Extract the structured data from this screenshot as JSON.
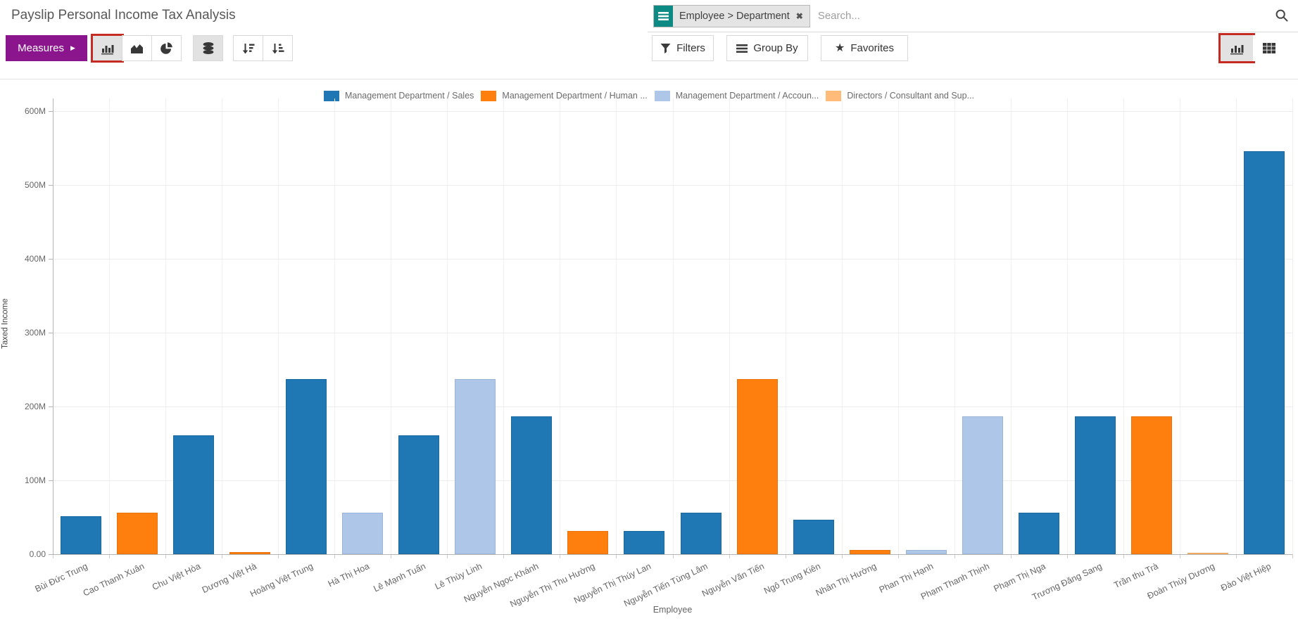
{
  "page": {
    "title": "Payslip Personal Income Tax Analysis"
  },
  "search": {
    "facet_label": "Employee > Department",
    "facet_remove": "✖",
    "placeholder": "Search..."
  },
  "toolbar": {
    "measures_label": "Measures",
    "measures_caret": "▶",
    "filters_label": "Filters",
    "group_by_label": "Group By",
    "favorites_label": "Favorites",
    "favorites_star": "★"
  },
  "colors": {
    "accent_purple": "#8b158d",
    "annotation_red": "#c52b22",
    "facet_teal": "#0e8a85",
    "divider_gray": "#e3e3e3"
  },
  "chart_data": {
    "type": "bar",
    "title": "",
    "xlabel": "Employee",
    "ylabel": "Taxed Income",
    "value_unit": "millions",
    "ylim_m": [
      0,
      600
    ],
    "grid": true,
    "legend_position": "top",
    "y_tick_labels": [
      "600M",
      "500M",
      "400M",
      "300M",
      "200M",
      "100M",
      "0.00"
    ],
    "y_tick_values_m": [
      600,
      500,
      400,
      300,
      200,
      100,
      0
    ],
    "series": [
      {
        "name": "Management Department / Sales",
        "color": "#1f77b4",
        "border": "#1a69a0"
      },
      {
        "name": "Management Department / Human ...",
        "color": "#ff7f0e",
        "border": "#e8720c"
      },
      {
        "name": "Management Department / Accoun...",
        "color": "#aec7e8",
        "border": "#9ab5d5"
      },
      {
        "name": "Directors / Consultant and Sup...",
        "color": "#ffbb78",
        "border": "#eda95f"
      }
    ],
    "points": [
      {
        "label": "Bùi Đức Trung",
        "value_m": 51,
        "series": 0
      },
      {
        "label": "Cao Thanh Xuân",
        "value_m": 56,
        "series": 1
      },
      {
        "label": "Chu Việt Hòa",
        "value_m": 161,
        "series": 0
      },
      {
        "label": "Dương Việt Hà",
        "value_m": 2.5,
        "series": 1
      },
      {
        "label": "Hoàng Việt Trung",
        "value_m": 237,
        "series": 0
      },
      {
        "label": "Hà Thị Hoa",
        "value_m": 56,
        "series": 2
      },
      {
        "label": "Lê Mạnh Tuấn",
        "value_m": 161,
        "series": 0
      },
      {
        "label": "Lê Thùy Linh",
        "value_m": 237,
        "series": 2
      },
      {
        "label": "Nguyễn Ngọc Khánh",
        "value_m": 187,
        "series": 0
      },
      {
        "label": "Nguyễn Thị Thu Hường",
        "value_m": 31,
        "series": 1
      },
      {
        "label": "Nguyễn Thị Thúy Lan",
        "value_m": 31,
        "series": 0
      },
      {
        "label": "Nguyễn Tiến Tùng Lâm",
        "value_m": 56,
        "series": 0
      },
      {
        "label": "Nguyễn Văn Tiến",
        "value_m": 237,
        "series": 1
      },
      {
        "label": "Ngô Trung Kiên",
        "value_m": 47,
        "series": 0
      },
      {
        "label": "Nhân Thị Hường",
        "value_m": 6,
        "series": 1
      },
      {
        "label": "Phan Thị Hạnh",
        "value_m": 6,
        "series": 2
      },
      {
        "label": "Phạm Thanh Thịnh",
        "value_m": 187,
        "series": 2
      },
      {
        "label": "Phạm Thị Nga",
        "value_m": 56,
        "series": 0
      },
      {
        "label": "Trương Đăng Sang",
        "value_m": 187,
        "series": 0
      },
      {
        "label": "Trần thu Trà",
        "value_m": 187,
        "series": 1
      },
      {
        "label": "Đoàn Thùy Dương",
        "value_m": 2,
        "series": 3
      },
      {
        "label": "Đào Việt Hiệp",
        "value_m": 546,
        "series": 0
      }
    ]
  }
}
